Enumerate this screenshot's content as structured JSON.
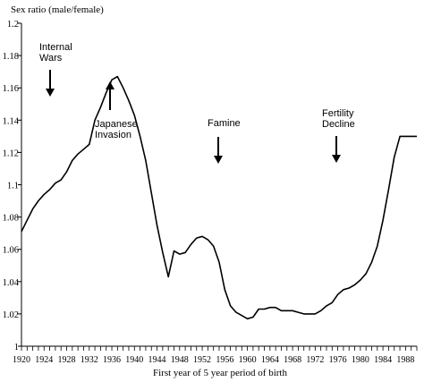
{
  "chart_data": {
    "type": "line",
    "title": "",
    "ylabel": "Sex ratio (male/female)",
    "xlabel": "First year of 5 year period of birth",
    "xlim": [
      1920,
      1990
    ],
    "ylim": [
      1,
      1.2
    ],
    "y_ticks": [
      "1",
      "1.02",
      "1.04",
      "1.06",
      "1.08",
      "1.1",
      "1.12",
      "1.14",
      "1.16",
      "1.18",
      "1.2"
    ],
    "x_ticks": [
      "1920",
      "1924",
      "1928",
      "1932",
      "1936",
      "1940",
      "1944",
      "1948",
      "1952",
      "1956",
      "1960",
      "1964",
      "1968",
      "1972",
      "1976",
      "1980",
      "1984",
      "1988"
    ],
    "grid": false,
    "series": [
      {
        "x": [
          1920,
          1921,
          1922,
          1923,
          1924,
          1925,
          1926,
          1927,
          1928,
          1929,
          1930,
          1931,
          1932,
          1933,
          1934,
          1935,
          1936,
          1937,
          1938,
          1939,
          1940,
          1941,
          1942,
          1943,
          1944,
          1945,
          1946,
          1947,
          1948,
          1949,
          1950,
          1951,
          1952,
          1953,
          1954,
          1955,
          1956,
          1957,
          1958,
          1959,
          1960,
          1961,
          1962,
          1963,
          1964,
          1965,
          1966,
          1967,
          1968,
          1969,
          1970,
          1971,
          1972,
          1973,
          1974,
          1975,
          1976,
          1977,
          1978,
          1979,
          1980,
          1981,
          1982,
          1983,
          1984,
          1985,
          1986,
          1987,
          1988,
          1989,
          1990
        ],
        "y": [
          1.071,
          1.078,
          1.085,
          1.09,
          1.094,
          1.097,
          1.101,
          1.103,
          1.108,
          1.115,
          1.119,
          1.122,
          1.125,
          1.14,
          1.148,
          1.157,
          1.165,
          1.167,
          1.16,
          1.152,
          1.143,
          1.13,
          1.115,
          1.095,
          1.075,
          1.058,
          1.043,
          1.059,
          1.057,
          1.058,
          1.063,
          1.067,
          1.068,
          1.066,
          1.062,
          1.052,
          1.035,
          1.025,
          1.021,
          1.019,
          1.017,
          1.018,
          1.023,
          1.023,
          1.024,
          1.024,
          1.022,
          1.022,
          1.022,
          1.021,
          1.02,
          1.02,
          1.02,
          1.022,
          1.025,
          1.027,
          1.032,
          1.035,
          1.036,
          1.038,
          1.041,
          1.045,
          1.052,
          1.062,
          1.078,
          1.097,
          1.117,
          1.13,
          1.13,
          1.13,
          1.13
        ]
      }
    ],
    "annotations": [
      {
        "lines": [
          "Internal",
          "Wars"
        ],
        "x": 1925,
        "arrow": "down"
      },
      {
        "lines": [
          "Japanese",
          "Invasion"
        ],
        "x": 1936,
        "arrow": "up"
      },
      {
        "lines": [
          "Famine"
        ],
        "x": 1956,
        "arrow": "down"
      },
      {
        "lines": [
          "Fertility",
          "Decline"
        ],
        "x": 1977,
        "arrow": "down"
      }
    ],
    "line_color": "#000000"
  }
}
